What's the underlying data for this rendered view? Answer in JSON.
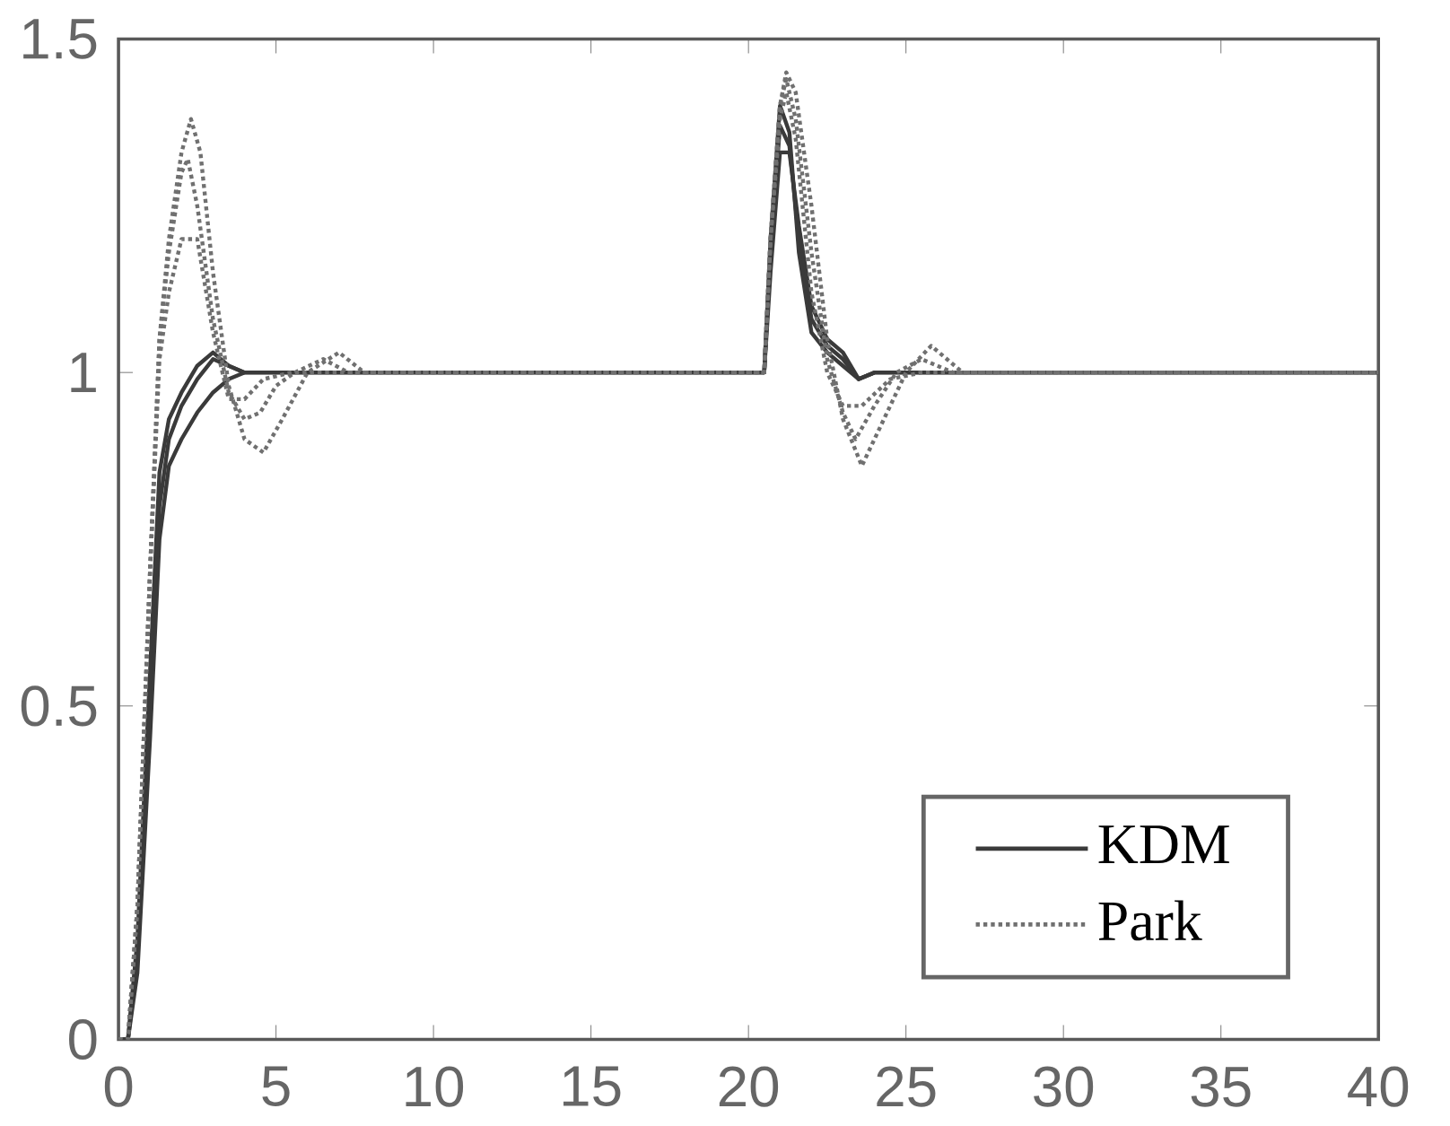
{
  "chart_data": {
    "type": "line",
    "xlim": [
      0,
      40
    ],
    "ylim": [
      0,
      1.5
    ],
    "xticks": [
      0,
      5,
      10,
      15,
      20,
      25,
      30,
      35,
      40
    ],
    "yticks": [
      0,
      0.5,
      1,
      1.5
    ],
    "legend": "bottom right",
    "grid": false,
    "marker": "none",
    "series": [
      {
        "name": "KDM",
        "color": "#3a3a3a",
        "line_style": "solid",
        "x": [
          0,
          0.3,
          0.6,
          1,
          1.3,
          1.6,
          2,
          2.5,
          3,
          3.5,
          4,
          5,
          10,
          20,
          20.5,
          20.7,
          21,
          21.3,
          21.6,
          22,
          22.5,
          23,
          23.5,
          24,
          25,
          30,
          40
        ],
        "values": [
          0,
          0,
          0.1,
          0.45,
          0.75,
          0.86,
          0.9,
          0.94,
          0.97,
          0.99,
          1,
          1,
          1,
          1,
          1,
          1.15,
          1.33,
          1.33,
          1.22,
          1.1,
          1.05,
          1.03,
          0.99,
          1,
          1,
          1,
          1
        ]
      },
      {
        "color": "#3a3a3a",
        "line_style": "solid",
        "x": [
          0,
          0.3,
          0.6,
          1,
          1.3,
          1.6,
          2,
          2.5,
          3,
          3.5,
          4,
          5,
          10,
          20,
          20.5,
          20.7,
          21,
          21.3,
          21.6,
          22,
          22.5,
          23,
          23.5,
          24,
          25,
          30,
          40
        ],
        "values": [
          0,
          0,
          0.12,
          0.5,
          0.8,
          0.9,
          0.95,
          0.99,
          1.02,
          1.01,
          1,
          1,
          1,
          1,
          1,
          1.18,
          1.37,
          1.34,
          1.2,
          1.08,
          1.04,
          1.02,
          0.99,
          1,
          1,
          1,
          1
        ]
      },
      {
        "color": "#3a3a3a",
        "line_style": "solid",
        "x": [
          0,
          0.3,
          0.6,
          1,
          1.3,
          1.6,
          2,
          2.5,
          3,
          3.5,
          4,
          5,
          10,
          20,
          20.5,
          20.7,
          21,
          21.3,
          21.6,
          22,
          22.5,
          23,
          23.5,
          24,
          25,
          30,
          40
        ],
        "values": [
          0,
          0,
          0.15,
          0.55,
          0.85,
          0.93,
          0.97,
          1.01,
          1.03,
          1.01,
          1,
          1,
          1,
          1,
          1,
          1.2,
          1.4,
          1.36,
          1.18,
          1.06,
          1.03,
          1.01,
          0.99,
          1,
          1,
          1,
          1
        ]
      },
      {
        "name": "Park",
        "color": "#707070",
        "line_style": "dotted",
        "x": [
          0,
          0.3,
          0.6,
          1,
          1.3,
          1.6,
          2,
          2.3,
          2.6,
          3,
          3.5,
          4,
          4.6,
          5.2,
          6,
          7,
          7.8,
          10,
          20,
          20.5,
          20.7,
          21,
          21.2,
          21.5,
          22,
          22.5,
          23,
          23.6,
          24.2,
          25,
          25.8,
          26.8,
          30,
          40
        ],
        "values": [
          0,
          0,
          0.2,
          0.7,
          1.05,
          1.2,
          1.33,
          1.38,
          1.33,
          1.15,
          0.98,
          0.9,
          0.88,
          0.93,
          1,
          1.03,
          1,
          1,
          1,
          1,
          1.2,
          1.4,
          1.45,
          1.42,
          1.25,
          1.05,
          0.93,
          0.86,
          0.92,
          1,
          1.04,
          1,
          1,
          1
        ]
      },
      {
        "color": "#707070",
        "line_style": "dotted",
        "x": [
          0,
          0.3,
          0.6,
          1,
          1.3,
          1.6,
          2,
          2.2,
          2.5,
          3,
          3.5,
          4,
          4.5,
          5,
          5.6,
          6.5,
          7.3,
          10,
          20,
          20.5,
          20.7,
          21,
          21.2,
          21.5,
          22,
          22.5,
          23,
          23.4,
          24,
          24.7,
          25.5,
          26.5,
          30,
          40
        ],
        "values": [
          0,
          0,
          0.2,
          0.7,
          1.05,
          1.18,
          1.3,
          1.32,
          1.25,
          1.08,
          0.97,
          0.93,
          0.94,
          0.98,
          1,
          1.02,
          1,
          1,
          1,
          1,
          1.2,
          1.4,
          1.44,
          1.38,
          1.18,
          1.02,
          0.94,
          0.9,
          0.95,
          1,
          1.02,
          1,
          1,
          1
        ]
      },
      {
        "color": "#707070",
        "line_style": "dotted",
        "x": [
          0,
          0.3,
          0.6,
          1,
          1.3,
          1.6,
          2,
          2.5,
          3,
          3.5,
          4,
          4.6,
          5.5,
          10,
          20,
          20.5,
          20.7,
          21,
          21.2,
          21.5,
          22,
          22.5,
          23,
          23.6,
          24.5,
          25.5,
          30,
          40
        ],
        "values": [
          0,
          0,
          0.2,
          0.7,
          1.02,
          1.12,
          1.2,
          1.2,
          1.06,
          0.96,
          0.96,
          0.99,
          1,
          1,
          1,
          1,
          1.2,
          1.38,
          1.42,
          1.35,
          1.12,
          1,
          0.95,
          0.95,
          0.99,
          1,
          1,
          1
        ]
      }
    ]
  }
}
